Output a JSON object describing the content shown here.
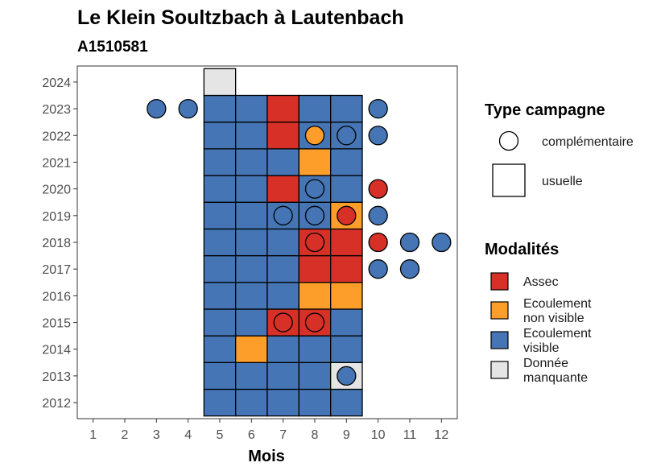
{
  "chart_data": {
    "type": "heatmap",
    "title": "Le Klein Soultzbach à Lautenbach",
    "subtitle": "A1510581",
    "xlabel": "Mois",
    "ylabel": "",
    "x_ticks": [
      1,
      2,
      3,
      4,
      5,
      6,
      7,
      8,
      9,
      10,
      11,
      12
    ],
    "y_ticks": [
      2012,
      2013,
      2014,
      2015,
      2016,
      2017,
      2018,
      2019,
      2020,
      2021,
      2022,
      2023,
      2024
    ],
    "xlim": [
      0.5,
      12.5
    ],
    "ylim": [
      2011.4,
      2024.6
    ],
    "grid": false,
    "legend_placement": "right",
    "colors": {
      "Assec": "#d73027",
      "Ecoulement non visible": "#fd9e2b",
      "Ecoulement visible": "#4575b4",
      "Donnée manquante": "#e5e5e5"
    },
    "legend": {
      "shape_title": "Type campagne",
      "shapes": [
        {
          "name": "complémentaire",
          "shape": "circle"
        },
        {
          "name": "usuelle",
          "shape": "square"
        }
      ],
      "fill_title": "Modalités",
      "fills": [
        {
          "key": "Assec",
          "lines": [
            "Assec"
          ]
        },
        {
          "key": "Ecoulement non visible",
          "lines": [
            "Ecoulement",
            "non visible"
          ]
        },
        {
          "key": "Ecoulement visible",
          "lines": [
            "Ecoulement",
            "visible"
          ]
        },
        {
          "key": "Donnée manquante",
          "lines": [
            "Donnée",
            "manquante"
          ]
        }
      ]
    },
    "usuelle": [
      {
        "year": 2012,
        "month": 5,
        "modalite": "Ecoulement visible"
      },
      {
        "year": 2012,
        "month": 6,
        "modalite": "Ecoulement visible"
      },
      {
        "year": 2012,
        "month": 7,
        "modalite": "Ecoulement visible"
      },
      {
        "year": 2012,
        "month": 8,
        "modalite": "Ecoulement visible"
      },
      {
        "year": 2012,
        "month": 9,
        "modalite": "Ecoulement visible"
      },
      {
        "year": 2013,
        "month": 5,
        "modalite": "Ecoulement visible"
      },
      {
        "year": 2013,
        "month": 6,
        "modalite": "Ecoulement visible"
      },
      {
        "year": 2013,
        "month": 7,
        "modalite": "Ecoulement visible"
      },
      {
        "year": 2013,
        "month": 8,
        "modalite": "Ecoulement visible"
      },
      {
        "year": 2013,
        "month": 9,
        "modalite": "Donnée manquante"
      },
      {
        "year": 2014,
        "month": 5,
        "modalite": "Ecoulement visible"
      },
      {
        "year": 2014,
        "month": 6,
        "modalite": "Ecoulement non visible"
      },
      {
        "year": 2014,
        "month": 7,
        "modalite": "Ecoulement visible"
      },
      {
        "year": 2014,
        "month": 8,
        "modalite": "Ecoulement visible"
      },
      {
        "year": 2014,
        "month": 9,
        "modalite": "Ecoulement visible"
      },
      {
        "year": 2015,
        "month": 5,
        "modalite": "Ecoulement visible"
      },
      {
        "year": 2015,
        "month": 6,
        "modalite": "Ecoulement visible"
      },
      {
        "year": 2015,
        "month": 7,
        "modalite": "Assec"
      },
      {
        "year": 2015,
        "month": 8,
        "modalite": "Assec"
      },
      {
        "year": 2015,
        "month": 9,
        "modalite": "Ecoulement visible"
      },
      {
        "year": 2016,
        "month": 5,
        "modalite": "Ecoulement visible"
      },
      {
        "year": 2016,
        "month": 6,
        "modalite": "Ecoulement visible"
      },
      {
        "year": 2016,
        "month": 7,
        "modalite": "Ecoulement visible"
      },
      {
        "year": 2016,
        "month": 8,
        "modalite": "Ecoulement non visible"
      },
      {
        "year": 2016,
        "month": 9,
        "modalite": "Ecoulement non visible"
      },
      {
        "year": 2017,
        "month": 5,
        "modalite": "Ecoulement visible"
      },
      {
        "year": 2017,
        "month": 6,
        "modalite": "Ecoulement visible"
      },
      {
        "year": 2017,
        "month": 7,
        "modalite": "Ecoulement visible"
      },
      {
        "year": 2017,
        "month": 8,
        "modalite": "Assec"
      },
      {
        "year": 2017,
        "month": 9,
        "modalite": "Assec"
      },
      {
        "year": 2018,
        "month": 5,
        "modalite": "Ecoulement visible"
      },
      {
        "year": 2018,
        "month": 6,
        "modalite": "Ecoulement visible"
      },
      {
        "year": 2018,
        "month": 7,
        "modalite": "Ecoulement visible"
      },
      {
        "year": 2018,
        "month": 8,
        "modalite": "Assec"
      },
      {
        "year": 2018,
        "month": 9,
        "modalite": "Assec"
      },
      {
        "year": 2019,
        "month": 5,
        "modalite": "Ecoulement visible"
      },
      {
        "year": 2019,
        "month": 6,
        "modalite": "Ecoulement visible"
      },
      {
        "year": 2019,
        "month": 7,
        "modalite": "Ecoulement visible"
      },
      {
        "year": 2019,
        "month": 8,
        "modalite": "Ecoulement visible"
      },
      {
        "year": 2019,
        "month": 9,
        "modalite": "Ecoulement non visible"
      },
      {
        "year": 2020,
        "month": 5,
        "modalite": "Ecoulement visible"
      },
      {
        "year": 2020,
        "month": 6,
        "modalite": "Ecoulement visible"
      },
      {
        "year": 2020,
        "month": 7,
        "modalite": "Assec"
      },
      {
        "year": 2020,
        "month": 8,
        "modalite": "Ecoulement visible"
      },
      {
        "year": 2020,
        "month": 9,
        "modalite": "Ecoulement visible"
      },
      {
        "year": 2021,
        "month": 5,
        "modalite": "Ecoulement visible"
      },
      {
        "year": 2021,
        "month": 6,
        "modalite": "Ecoulement visible"
      },
      {
        "year": 2021,
        "month": 7,
        "modalite": "Ecoulement visible"
      },
      {
        "year": 2021,
        "month": 8,
        "modalite": "Ecoulement non visible"
      },
      {
        "year": 2021,
        "month": 9,
        "modalite": "Ecoulement visible"
      },
      {
        "year": 2022,
        "month": 5,
        "modalite": "Ecoulement visible"
      },
      {
        "year": 2022,
        "month": 6,
        "modalite": "Ecoulement visible"
      },
      {
        "year": 2022,
        "month": 7,
        "modalite": "Assec"
      },
      {
        "year": 2022,
        "month": 8,
        "modalite": "Ecoulement visible"
      },
      {
        "year": 2022,
        "month": 9,
        "modalite": "Ecoulement visible"
      },
      {
        "year": 2023,
        "month": 5,
        "modalite": "Ecoulement visible"
      },
      {
        "year": 2023,
        "month": 6,
        "modalite": "Ecoulement visible"
      },
      {
        "year": 2023,
        "month": 7,
        "modalite": "Assec"
      },
      {
        "year": 2023,
        "month": 8,
        "modalite": "Ecoulement visible"
      },
      {
        "year": 2023,
        "month": 9,
        "modalite": "Ecoulement visible"
      },
      {
        "year": 2024,
        "month": 5,
        "modalite": "Donnée manquante"
      }
    ],
    "complementaire": [
      {
        "year": 2013,
        "month": 9,
        "modalite": "Ecoulement visible"
      },
      {
        "year": 2015,
        "month": 7,
        "modalite": "Assec"
      },
      {
        "year": 2015,
        "month": 8,
        "modalite": "Assec"
      },
      {
        "year": 2017,
        "month": 10,
        "modalite": "Ecoulement visible"
      },
      {
        "year": 2017,
        "month": 11,
        "modalite": "Ecoulement visible"
      },
      {
        "year": 2018,
        "month": 8,
        "modalite": "Assec"
      },
      {
        "year": 2018,
        "month": 10,
        "modalite": "Assec"
      },
      {
        "year": 2018,
        "month": 11,
        "modalite": "Ecoulement visible"
      },
      {
        "year": 2018,
        "month": 12,
        "modalite": "Ecoulement visible"
      },
      {
        "year": 2019,
        "month": 7,
        "modalite": "Ecoulement visible"
      },
      {
        "year": 2019,
        "month": 8,
        "modalite": "Ecoulement visible"
      },
      {
        "year": 2019,
        "month": 9,
        "modalite": "Assec"
      },
      {
        "year": 2019,
        "month": 10,
        "modalite": "Ecoulement visible"
      },
      {
        "year": 2020,
        "month": 8,
        "modalite": "Ecoulement visible"
      },
      {
        "year": 2020,
        "month": 10,
        "modalite": "Assec"
      },
      {
        "year": 2022,
        "month": 8,
        "modalite": "Ecoulement non visible"
      },
      {
        "year": 2022,
        "month": 9,
        "modalite": "Ecoulement visible"
      },
      {
        "year": 2022,
        "month": 10,
        "modalite": "Ecoulement visible"
      },
      {
        "year": 2023,
        "month": 3,
        "modalite": "Ecoulement visible"
      },
      {
        "year": 2023,
        "month": 4,
        "modalite": "Ecoulement visible"
      },
      {
        "year": 2023,
        "month": 10,
        "modalite": "Ecoulement visible"
      }
    ]
  }
}
